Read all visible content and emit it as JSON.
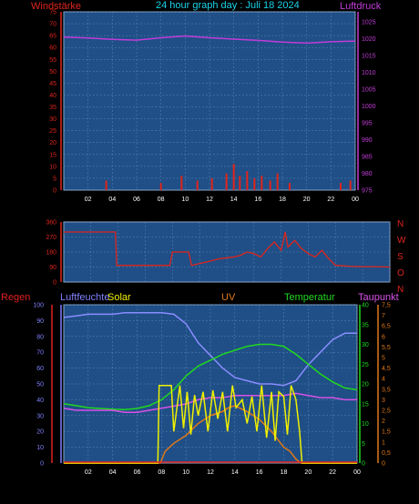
{
  "header": {
    "wind_label": "Windstärke",
    "title": "24 hour graph day : Juli 18 2024",
    "pressure_label": "Luftdruck"
  },
  "legend": {
    "rain": "Regen",
    "humidity": "Luftfeuchte",
    "solar": "Solar",
    "uv": "UV",
    "temperature": "Temperatur",
    "dewpoint": "Taupunkt"
  },
  "colors": {
    "plot_bg": "#1f4f86",
    "grid": "#5d86b8",
    "wind": "#e0241c",
    "pressure": "#c23cd8",
    "direction": "#e0241c",
    "rain": "#e02020",
    "humidity": "#8a8cff",
    "solar": "#f0f000",
    "uv": "#e07818",
    "temperature": "#20d820",
    "dewpoint": "#d850e8",
    "title": "#19d3e8",
    "hum_axis": "#8080ff"
  },
  "chart_data": [
    {
      "type": "line",
      "name": "wind_pressure",
      "x_ticks": [
        "02",
        "04",
        "06",
        "08",
        "10",
        "12",
        "14",
        "16",
        "18",
        "20",
        "22",
        "00"
      ],
      "left_axis": {
        "ticks": [
          0,
          5,
          10,
          15,
          20,
          25,
          30,
          35,
          40,
          45,
          50,
          55,
          60,
          65,
          70,
          75
        ],
        "ylim": [
          0,
          75
        ]
      },
      "right_axis": {
        "ticks": [
          975,
          980,
          985,
          990,
          995,
          1000,
          1005,
          1010,
          1015,
          1020,
          1025
        ],
        "ylim": [
          975,
          1028
        ]
      },
      "pressure": {
        "x": [
          0,
          2,
          4,
          6,
          8,
          10,
          12,
          14,
          16,
          18,
          20,
          22,
          24
        ],
        "y": [
          1020.5,
          1020.2,
          1019.8,
          1019.6,
          1020.3,
          1020.8,
          1020.3,
          1019.9,
          1019.5,
          1019.0,
          1018.7,
          1019.1,
          1019.3
        ]
      },
      "wind": {
        "x": [
          3.5,
          8.0,
          9.7,
          11.0,
          12.2,
          13.4,
          14.0,
          14.5,
          15.1,
          15.7,
          16.3,
          17.0,
          17.6,
          18.6,
          22.8,
          23.6
        ],
        "y": [
          4,
          3,
          6,
          4,
          5,
          7,
          11,
          6,
          8,
          5,
          6,
          4,
          7,
          3,
          3,
          4
        ]
      }
    },
    {
      "type": "line",
      "name": "direction",
      "right_labels": [
        "N",
        "W",
        "S",
        "O",
        "N"
      ],
      "y_ticks": [
        0,
        90,
        180,
        270,
        360
      ],
      "ylim": [
        0,
        360
      ],
      "x": [
        0,
        3.8,
        3.9,
        7.8,
        8.0,
        9.2,
        9.4,
        10.5,
        11.5,
        12.5,
        13.0,
        13.5,
        14.0,
        14.5,
        15.0,
        15.5,
        16.0,
        16.3,
        16.5,
        17.0,
        17.5,
        18.0,
        18.5,
        19.0,
        19.5,
        20.0,
        21.0,
        22.0,
        23.0,
        24.0
      ],
      "y": [
        300,
        300,
        100,
        100,
        180,
        180,
        100,
        120,
        140,
        150,
        160,
        180,
        170,
        150,
        200,
        240,
        190,
        300,
        210,
        250,
        200,
        170,
        150,
        190,
        140,
        100,
        95,
        92,
        92,
        90
      ]
    },
    {
      "type": "line",
      "name": "weather",
      "left_ticks": [
        0,
        10,
        20,
        30,
        40,
        50,
        60,
        70,
        80,
        90,
        100
      ],
      "temp_ticks": [
        0,
        5,
        10,
        15,
        20,
        25,
        30,
        35,
        40
      ],
      "dew_ticks": [
        "0",
        "0,5",
        "1",
        "1,5",
        "2",
        "2,5",
        "3",
        "3,5",
        "4",
        "4,5",
        "5",
        "5,5",
        "6",
        "6,5",
        "7",
        "7,5"
      ],
      "humidity": {
        "x": [
          0,
          1,
          2,
          3,
          4,
          5,
          6,
          7,
          8,
          9,
          10,
          11,
          12,
          13,
          14,
          15,
          16,
          17,
          18,
          19,
          20,
          21,
          22,
          23,
          24
        ],
        "y": [
          92,
          93,
          94,
          94,
          94,
          95,
          95,
          95,
          95,
          94,
          88,
          76,
          68,
          60,
          54,
          52,
          50,
          50,
          49,
          52,
          62,
          70,
          78,
          82,
          82
        ]
      },
      "temperature": {
        "x": [
          0,
          1,
          2,
          3,
          4,
          5,
          6,
          7,
          8,
          9,
          10,
          11,
          12,
          13,
          14,
          15,
          16,
          17,
          18,
          19,
          20,
          21,
          22,
          23,
          24
        ],
        "y": [
          15,
          14.5,
          14,
          13.8,
          13.6,
          13.5,
          13.8,
          14.5,
          16,
          18.5,
          22,
          24.5,
          26,
          27.5,
          28.5,
          29.5,
          30,
          30,
          29.5,
          27.5,
          25,
          22.5,
          20.5,
          19,
          18.5
        ]
      },
      "dewpoint": {
        "x": [
          0,
          1,
          2,
          3,
          4,
          5,
          6,
          7,
          8,
          9,
          10,
          11,
          12,
          13,
          14,
          15,
          16,
          17,
          18,
          19,
          20,
          21,
          22,
          23,
          24
        ],
        "y": [
          2.6,
          2.5,
          2.5,
          2.5,
          2.5,
          2.4,
          2.4,
          2.5,
          2.6,
          2.7,
          2.8,
          3.0,
          3.1,
          3.1,
          3.2,
          3.2,
          3.2,
          3.2,
          3.2,
          3.3,
          3.2,
          3.1,
          3.1,
          3.0,
          3.0
        ]
      },
      "solar": {
        "x": [
          0,
          7.7,
          7.8,
          8.8,
          9.0,
          9.5,
          9.8,
          10.1,
          10.4,
          10.7,
          11.0,
          11.4,
          11.8,
          12.2,
          12.6,
          13.0,
          13.4,
          13.8,
          14.1,
          14.6,
          15.0,
          15.4,
          15.8,
          16.2,
          16.6,
          17.0,
          17.3,
          17.6,
          18.0,
          18.3,
          18.6,
          19.0,
          19.3,
          19.5,
          24
        ],
        "y": [
          0,
          0,
          49,
          49,
          20,
          49,
          22,
          45,
          18,
          43,
          30,
          45,
          20,
          46,
          28,
          45,
          20,
          49,
          35,
          40,
          25,
          42,
          20,
          49,
          16,
          45,
          14,
          45,
          42,
          18,
          49,
          40,
          20,
          0,
          0
        ]
      },
      "uv": {
        "x": [
          0,
          7.9,
          8.3,
          9.0,
          10.0,
          11.0,
          12.0,
          13.0,
          13.5,
          14.0,
          15.0,
          16.0,
          17.0,
          17.5,
          18.0,
          18.5,
          19.0,
          19.4,
          24
        ],
        "y": [
          0,
          0,
          3,
          5,
          7,
          10,
          12,
          13,
          14,
          14.5,
          13,
          11,
          8,
          6,
          4,
          3,
          1,
          0,
          0
        ]
      }
    }
  ]
}
